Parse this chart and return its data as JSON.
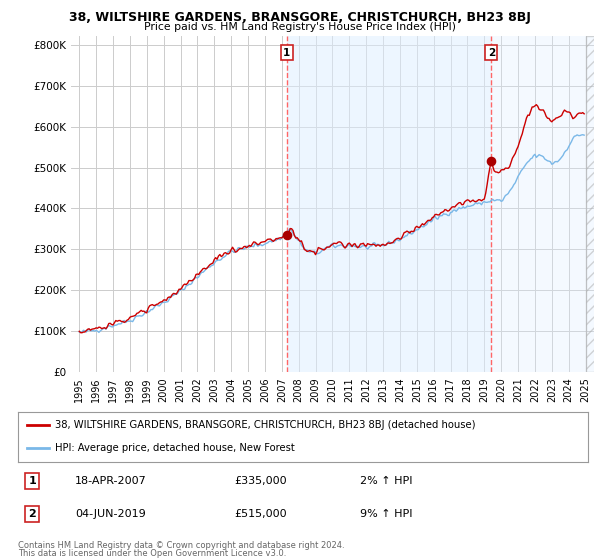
{
  "title": "38, WILTSHIRE GARDENS, BRANSGORE, CHRISTCHURCH, BH23 8BJ",
  "subtitle": "Price paid vs. HM Land Registry's House Price Index (HPI)",
  "ylabel_ticks": [
    "£0",
    "£100K",
    "£200K",
    "£300K",
    "£400K",
    "£500K",
    "£600K",
    "£700K",
    "£800K"
  ],
  "ytick_values": [
    0,
    100000,
    200000,
    300000,
    400000,
    500000,
    600000,
    700000,
    800000
  ],
  "ylim": [
    0,
    820000
  ],
  "transaction1": {
    "date_num": 2007.29,
    "price": 335000,
    "label": "1",
    "display_date": "18-APR-2007",
    "display_price": "£335,000",
    "hpi_pct": "2% ↑ HPI"
  },
  "transaction2": {
    "date_num": 2019.42,
    "price": 515000,
    "label": "2",
    "display_date": "04-JUN-2019",
    "display_price": "£515,000",
    "hpi_pct": "9% ↑ HPI"
  },
  "hpi_line_color": "#7ab8e8",
  "price_line_color": "#cc0000",
  "vline_color": "#ff6666",
  "dot_color": "#aa0000",
  "grid_color": "#cccccc",
  "bg_color": "#ffffff",
  "shade_color": "#ddeeff",
  "legend_label_red": "38, WILTSHIRE GARDENS, BRANSGORE, CHRISTCHURCH, BH23 8BJ (detached house)",
  "legend_label_blue": "HPI: Average price, detached house, New Forest",
  "xtick_years": [
    1995,
    1996,
    1997,
    1998,
    1999,
    2000,
    2001,
    2002,
    2003,
    2004,
    2005,
    2006,
    2007,
    2008,
    2009,
    2010,
    2011,
    2012,
    2013,
    2014,
    2015,
    2016,
    2017,
    2018,
    2019,
    2020,
    2021,
    2022,
    2023,
    2024,
    2025
  ]
}
